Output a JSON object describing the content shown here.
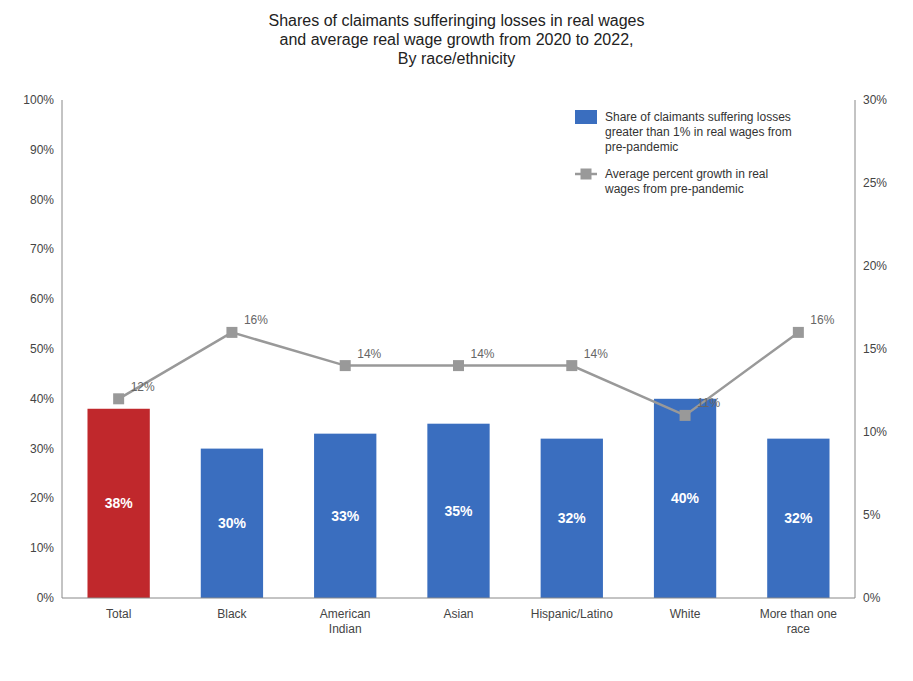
{
  "chart_data": {
    "type": "bar",
    "title": "Shares of claimants sufferinging losses in real wages\nand average real wage growth from 2020 to 2022,\nBy race/ethnicity",
    "categories": [
      "Total",
      "Black",
      "American\nIndian",
      "Asian",
      "Hispanic/Latino",
      "White",
      "More than one\nrace"
    ],
    "series": [
      {
        "name": "Share of claimants suffering losses\ngreater than 1% in real wages from\npre-pandemic",
        "type": "bar",
        "color": "#3a6ebf",
        "colors": [
          "#c0282c",
          "#3a6ebf",
          "#3a6ebf",
          "#3a6ebf",
          "#3a6ebf",
          "#3a6ebf",
          "#3a6ebf"
        ],
        "values": [
          38,
          30,
          33,
          35,
          32,
          40,
          32
        ],
        "value_labels": [
          "38%",
          "30%",
          "33%",
          "35%",
          "32%",
          "40%",
          "32%"
        ]
      },
      {
        "name": "Average percent growth in real\nwages from pre-pandemic",
        "type": "line",
        "axis": "y2",
        "color": "#999999",
        "marker": "square",
        "values": [
          12,
          16,
          14,
          14,
          14,
          11,
          16
        ],
        "value_labels": [
          "12%",
          "16%",
          "14%",
          "14%",
          "14%",
          "11%",
          "16%"
        ]
      }
    ],
    "ylim": [
      0,
      100
    ],
    "yticks": [
      {
        "value": 0,
        "label": "0%"
      },
      {
        "value": 10,
        "label": "10%"
      },
      {
        "value": 20,
        "label": "20%"
      },
      {
        "value": 30,
        "label": "30%"
      },
      {
        "value": 40,
        "label": "40%"
      },
      {
        "value": 50,
        "label": "50%"
      },
      {
        "value": 60,
        "label": "60%"
      },
      {
        "value": 70,
        "label": "70%"
      },
      {
        "value": 80,
        "label": "80%"
      },
      {
        "value": 90,
        "label": "90%"
      },
      {
        "value": 100,
        "label": "100%"
      }
    ],
    "y2lim": [
      0,
      30
    ],
    "y2ticks": [
      {
        "value": 0,
        "label": "0%"
      },
      {
        "value": 5,
        "label": "5%"
      },
      {
        "value": 10,
        "label": "10%"
      },
      {
        "value": 15,
        "label": "15%"
      },
      {
        "value": 20,
        "label": "20%"
      },
      {
        "value": 25,
        "label": "25%"
      },
      {
        "value": 30,
        "label": "30%"
      }
    ],
    "data_labels": true,
    "grid": false,
    "legend": "upper right"
  }
}
